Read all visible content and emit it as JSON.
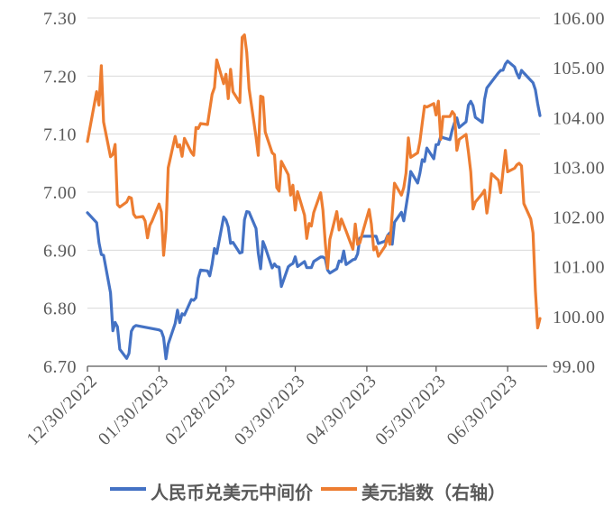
{
  "chart_data": {
    "type": "line",
    "title": "",
    "x_axis": {
      "start": "12/30/2022",
      "end": "07/14/2023",
      "tick_labels": [
        "12/30/2022",
        "01/30/2023",
        "02/28/2023",
        "03/30/2023",
        "04/30/2023",
        "05/30/2023",
        "06/30/2023"
      ]
    },
    "left_axis": {
      "min": 6.7,
      "max": 7.3,
      "step": 0.1,
      "tick_labels": [
        "6.70",
        "6.80",
        "6.90",
        "7.00",
        "7.10",
        "7.20",
        "7.30"
      ]
    },
    "right_axis": {
      "min": 99.0,
      "max": 106.0,
      "step": 1.0,
      "tick_labels": [
        "99.00",
        "100.00",
        "101.00",
        "102.00",
        "103.00",
        "104.00",
        "105.00",
        "106.00"
      ]
    },
    "grid": "horizontal-left-axis",
    "legend_position": "bottom-center",
    "colors": {
      "series_cny": "#4472C4",
      "series_dxy": "#ED7D31",
      "gridline": "#D9D9D9",
      "axis_line": "#595959",
      "label": "#595959"
    },
    "series": [
      {
        "name": "人民币兑美元中间价",
        "axis": "left",
        "color": "#4472C4",
        "points": [
          [
            "12/30",
            6.9646
          ],
          [
            "1/3",
            6.9475
          ],
          [
            "1/4",
            6.9131
          ],
          [
            "1/5",
            6.8926
          ],
          [
            "1/6",
            6.8912
          ],
          [
            "1/9",
            6.8265
          ],
          [
            "1/10",
            6.7611
          ],
          [
            "1/11",
            6.7756
          ],
          [
            "1/12",
            6.768
          ],
          [
            "1/13",
            6.7292
          ],
          [
            "1/16",
            6.7135
          ],
          [
            "1/17",
            6.7222
          ],
          [
            "1/18",
            6.7602
          ],
          [
            "1/19",
            6.7674
          ],
          [
            "1/20",
            6.7702
          ],
          [
            "1/30",
            6.7626
          ],
          [
            "1/31",
            6.7604
          ],
          [
            "2/1",
            6.7492
          ],
          [
            "2/2",
            6.713
          ],
          [
            "2/3",
            6.7382
          ],
          [
            "2/6",
            6.7737
          ],
          [
            "2/7",
            6.7967
          ],
          [
            "2/8",
            6.7752
          ],
          [
            "2/9",
            6.7905
          ],
          [
            "2/10",
            6.7884
          ],
          [
            "2/13",
            6.8151
          ],
          [
            "2/14",
            6.8136
          ],
          [
            "2/15",
            6.8183
          ],
          [
            "2/16",
            6.8519
          ],
          [
            "2/17",
            6.8659
          ],
          [
            "2/20",
            6.8643
          ],
          [
            "2/21",
            6.8557
          ],
          [
            "2/22",
            6.8759
          ],
          [
            "2/23",
            6.9028
          ],
          [
            "2/24",
            6.8942
          ],
          [
            "2/27",
            6.9572
          ],
          [
            "2/28",
            6.9519
          ],
          [
            "3/1",
            6.94
          ],
          [
            "3/2",
            6.9117
          ],
          [
            "3/3",
            6.9136
          ],
          [
            "3/6",
            6.8951
          ],
          [
            "3/7",
            6.8964
          ],
          [
            "3/8",
            6.9525
          ],
          [
            "3/9",
            6.9666
          ],
          [
            "3/10",
            6.9655
          ],
          [
            "3/13",
            6.9375
          ],
          [
            "3/14",
            6.8949
          ],
          [
            "3/15",
            6.868
          ],
          [
            "3/16",
            6.9149
          ],
          [
            "3/17",
            6.9052
          ],
          [
            "3/20",
            6.8694
          ],
          [
            "3/21",
            6.8763
          ],
          [
            "3/22",
            6.8715
          ],
          [
            "3/23",
            6.8709
          ],
          [
            "3/24",
            6.8374
          ],
          [
            "3/27",
            6.8714
          ],
          [
            "3/28",
            6.8749
          ],
          [
            "3/29",
            6.8771
          ],
          [
            "3/30",
            6.8886
          ],
          [
            "3/31",
            6.8717
          ],
          [
            "4/3",
            6.8805
          ],
          [
            "4/4",
            6.8699
          ],
          [
            "4/6",
            6.8699
          ],
          [
            "4/7",
            6.8805
          ],
          [
            "4/10",
            6.8882
          ],
          [
            "4/11",
            6.8882
          ],
          [
            "4/12",
            6.8854
          ],
          [
            "4/13",
            6.8658
          ],
          [
            "4/14",
            6.8606
          ],
          [
            "4/17",
            6.8679
          ],
          [
            "4/18",
            6.8814
          ],
          [
            "4/19",
            6.8802
          ],
          [
            "4/20",
            6.8987
          ],
          [
            "4/21",
            6.8752
          ],
          [
            "4/24",
            6.8835
          ],
          [
            "4/25",
            6.8847
          ],
          [
            "4/26",
            6.8936
          ],
          [
            "4/27",
            6.9207
          ],
          [
            "4/28",
            6.924
          ],
          [
            "5/4",
            6.924
          ],
          [
            "5/5",
            6.9114
          ],
          [
            "5/8",
            6.9158
          ],
          [
            "5/9",
            6.9255
          ],
          [
            "5/10",
            6.9299
          ],
          [
            "5/11",
            6.9101
          ],
          [
            "5/12",
            6.9481
          ],
          [
            "5/15",
            6.9654
          ],
          [
            "5/16",
            6.9506
          ],
          [
            "5/17",
            6.9748
          ],
          [
            "5/18",
            7.0003
          ],
          [
            "5/19",
            7.0356
          ],
          [
            "5/22",
            7.0157
          ],
          [
            "5/23",
            7.0326
          ],
          [
            "5/24",
            7.056
          ],
          [
            "5/25",
            7.0529
          ],
          [
            "5/26",
            7.076
          ],
          [
            "5/29",
            7.0575
          ],
          [
            "5/30",
            7.0818
          ],
          [
            "5/31",
            7.0821
          ],
          [
            "6/1",
            7.0965
          ],
          [
            "6/2",
            7.0939
          ],
          [
            "6/5",
            7.0904
          ],
          [
            "6/6",
            7.1075
          ],
          [
            "6/7",
            7.1196
          ],
          [
            "6/8",
            7.128
          ],
          [
            "6/9",
            7.1115
          ],
          [
            "6/12",
            7.1212
          ],
          [
            "6/13",
            7.1498
          ],
          [
            "6/14",
            7.1566
          ],
          [
            "6/15",
            7.1489
          ],
          [
            "6/16",
            7.1289
          ],
          [
            "6/19",
            7.1201
          ],
          [
            "6/20",
            7.1596
          ],
          [
            "6/21",
            7.1795
          ],
          [
            "6/26",
            7.2056
          ],
          [
            "6/27",
            7.2098
          ],
          [
            "6/28",
            7.2101
          ],
          [
            "6/29",
            7.2208
          ],
          [
            "6/30",
            7.2258
          ],
          [
            "7/3",
            7.2157
          ],
          [
            "7/4",
            7.2046
          ],
          [
            "7/5",
            7.1968
          ],
          [
            "7/6",
            7.2098
          ],
          [
            "7/7",
            7.2054
          ],
          [
            "7/10",
            7.1926
          ],
          [
            "7/11",
            7.1886
          ],
          [
            "7/12",
            7.1765
          ],
          [
            "7/13",
            7.1527
          ],
          [
            "7/14",
            7.1318
          ]
        ]
      },
      {
        "name": "美元指数（右轴）",
        "axis": "right",
        "color": "#ED7D31",
        "points": [
          [
            "12/30",
            103.52
          ],
          [
            "1/3",
            104.52
          ],
          [
            "1/4",
            104.25
          ],
          [
            "1/5",
            105.04
          ],
          [
            "1/6",
            103.91
          ],
          [
            "1/9",
            103.21
          ],
          [
            "1/10",
            103.26
          ],
          [
            "1/11",
            103.46
          ],
          [
            "1/12",
            102.25
          ],
          [
            "1/13",
            102.2
          ],
          [
            "1/16",
            102.3
          ],
          [
            "1/17",
            102.4
          ],
          [
            "1/18",
            102.38
          ],
          [
            "1/19",
            102.06
          ],
          [
            "1/20",
            101.99
          ],
          [
            "1/23",
            102.01
          ],
          [
            "1/24",
            101.92
          ],
          [
            "1/25",
            101.58
          ],
          [
            "1/26",
            101.83
          ],
          [
            "1/27",
            101.92
          ],
          [
            "1/30",
            102.26
          ],
          [
            "1/31",
            102.1
          ],
          [
            "2/1",
            101.23
          ],
          [
            "2/2",
            101.75
          ],
          [
            "2/3",
            102.99
          ],
          [
            "2/6",
            103.62
          ],
          [
            "2/7",
            103.41
          ],
          [
            "2/8",
            103.45
          ],
          [
            "2/9",
            103.22
          ],
          [
            "2/10",
            103.58
          ],
          [
            "2/13",
            103.3
          ],
          [
            "2/14",
            103.24
          ],
          [
            "2/15",
            103.8
          ],
          [
            "2/16",
            103.78
          ],
          [
            "2/17",
            103.88
          ],
          [
            "2/20",
            103.86
          ],
          [
            "2/21",
            104.16
          ],
          [
            "2/22",
            104.47
          ],
          [
            "2/23",
            104.6
          ],
          [
            "2/24",
            105.16
          ],
          [
            "2/27",
            104.68
          ],
          [
            "2/28",
            104.87
          ],
          [
            "3/1",
            104.38
          ],
          [
            "3/2",
            104.97
          ],
          [
            "3/3",
            104.52
          ],
          [
            "3/6",
            104.3
          ],
          [
            "3/7",
            105.61
          ],
          [
            "3/8",
            105.66
          ],
          [
            "3/9",
            105.31
          ],
          [
            "3/10",
            104.58
          ],
          [
            "3/13",
            103.61
          ],
          [
            "3/14",
            103.24
          ],
          [
            "3/15",
            104.43
          ],
          [
            "3/16",
            104.41
          ],
          [
            "3/17",
            103.71
          ],
          [
            "3/20",
            103.29
          ],
          [
            "3/21",
            103.25
          ],
          [
            "3/22",
            102.59
          ],
          [
            "3/23",
            102.52
          ],
          [
            "3/24",
            103.12
          ],
          [
            "3/27",
            102.85
          ],
          [
            "3/28",
            102.44
          ],
          [
            "3/29",
            102.64
          ],
          [
            "3/30",
            102.14
          ],
          [
            "3/31",
            102.51
          ],
          [
            "4/3",
            102.04
          ],
          [
            "4/4",
            101.57
          ],
          [
            "4/5",
            101.87
          ],
          [
            "4/6",
            101.82
          ],
          [
            "4/7",
            102.09
          ],
          [
            "4/10",
            102.49
          ],
          [
            "4/11",
            102.14
          ],
          [
            "4/12",
            101.49
          ],
          [
            "4/13",
            100.97
          ],
          [
            "4/14",
            101.55
          ],
          [
            "4/17",
            102.11
          ],
          [
            "4/18",
            101.74
          ],
          [
            "4/19",
            101.96
          ],
          [
            "4/20",
            101.84
          ],
          [
            "4/21",
            101.72
          ],
          [
            "4/24",
            101.35
          ],
          [
            "4/25",
            101.86
          ],
          [
            "4/26",
            101.45
          ],
          [
            "4/27",
            101.48
          ],
          [
            "4/28",
            101.66
          ],
          [
            "5/1",
            102.15
          ],
          [
            "5/2",
            101.85
          ],
          [
            "5/3",
            101.34
          ],
          [
            "5/4",
            101.4
          ],
          [
            "5/5",
            101.21
          ],
          [
            "5/8",
            101.42
          ],
          [
            "5/9",
            101.62
          ],
          [
            "5/10",
            101.45
          ],
          [
            "5/11",
            102.06
          ],
          [
            "5/12",
            102.68
          ],
          [
            "5/15",
            102.44
          ],
          [
            "5/16",
            102.59
          ],
          [
            "5/17",
            102.88
          ],
          [
            "5/18",
            103.59
          ],
          [
            "5/19",
            103.2
          ],
          [
            "5/22",
            103.29
          ],
          [
            "5/23",
            103.52
          ],
          [
            "5/24",
            103.89
          ],
          [
            "5/25",
            104.23
          ],
          [
            "5/26",
            104.21
          ],
          [
            "5/29",
            104.28
          ],
          [
            "5/30",
            104.05
          ],
          [
            "5/31",
            104.33
          ],
          [
            "6/1",
            103.56
          ],
          [
            "6/2",
            104.02
          ],
          [
            "6/5",
            104.02
          ],
          [
            "6/6",
            104.12
          ],
          [
            "6/7",
            104.06
          ],
          [
            "6/8",
            103.34
          ],
          [
            "6/9",
            103.56
          ],
          [
            "6/12",
            103.66
          ],
          [
            "6/13",
            103.31
          ],
          [
            "6/14",
            102.91
          ],
          [
            "6/15",
            102.16
          ],
          [
            "6/16",
            102.3
          ],
          [
            "6/19",
            102.47
          ],
          [
            "6/20",
            102.54
          ],
          [
            "6/21",
            102.08
          ],
          [
            "6/22",
            102.4
          ],
          [
            "6/23",
            102.87
          ],
          [
            "6/26",
            102.74
          ],
          [
            "6/27",
            102.49
          ],
          [
            "6/28",
            102.92
          ],
          [
            "6/29",
            103.34
          ],
          [
            "6/30",
            102.91
          ],
          [
            "7/3",
            102.98
          ],
          [
            "7/4",
            103.05
          ],
          [
            "7/5",
            103.08
          ],
          [
            "7/6",
            103.03
          ],
          [
            "7/7",
            102.27
          ],
          [
            "7/10",
            101.96
          ],
          [
            "7/11",
            101.68
          ],
          [
            "7/12",
            100.52
          ],
          [
            "7/13",
            99.77
          ],
          [
            "7/14",
            99.96
          ]
        ]
      }
    ]
  }
}
